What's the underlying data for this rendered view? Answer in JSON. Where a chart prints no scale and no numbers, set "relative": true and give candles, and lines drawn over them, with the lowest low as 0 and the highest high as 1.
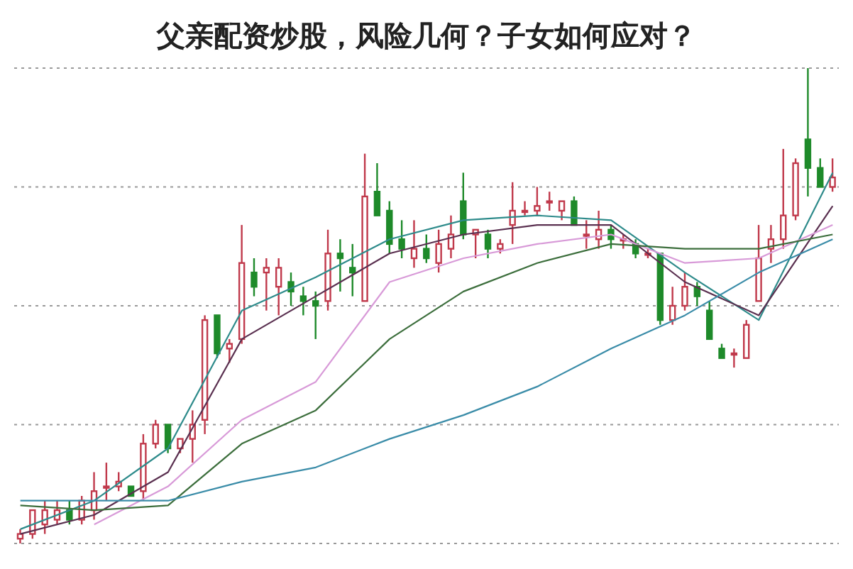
{
  "chart_data": {
    "type": "candlestick",
    "title": "父亲配资炒股，风险几何？子女如何应对？",
    "relative": true,
    "grid": "y",
    "colors": [
      "#c0394b",
      "#c0394b",
      "#c0394b",
      "#c0394b",
      "#1e8a2a",
      "#c0394b",
      "#c0394b",
      "#c0394b",
      "#c0394b",
      "#1e8a2a",
      "#c0394b",
      "#c0394b",
      "#1e8a2a",
      "#c0394b",
      "#c0394b",
      "#c0394b",
      "#1e8a2a",
      "#c0394b",
      "#c0394b",
      "#1e8a2a",
      "#c0394b",
      "#c0394b",
      "#1e8a2a",
      "#1e8a2a",
      "#1e8a2a",
      "#c0394b",
      "#1e8a2a",
      "#1e8a2a",
      "#c0394b",
      "#1e8a2a",
      "#1e8a2a",
      "#1e8a2a",
      "#c0394b",
      "#1e8a2a",
      "#c0394b",
      "#c0394b",
      "#1e8a2a",
      "#c0394b",
      "#1e8a2a",
      "#c0394b",
      "#c0394b",
      "#c0394b",
      "#c0394b",
      "#c0394b",
      "#c0394b",
      "#1e8a2a",
      "#c0394b",
      "#c0394b",
      "#1e8a2a",
      "#c0394b",
      "#1e8a2a",
      "#c0394b",
      "#1e8a2a",
      "#c0394b",
      "#c0394b",
      "#1e8a2a",
      "#1e8a2a",
      "#1e8a2a",
      "#c0394b",
      "#c0394b",
      "#c0394b",
      "#c0394b",
      "#c0394b",
      "#c0394b",
      "#1e8a2a",
      "#1e8a2a",
      "#c0394b"
    ],
    "categories": [
      null,
      null,
      null,
      null,
      null,
      null,
      null,
      null,
      null,
      null,
      null,
      null,
      null,
      null,
      null,
      null,
      null,
      null,
      null,
      null,
      null,
      null,
      null,
      null,
      null,
      null,
      null,
      null,
      null,
      null,
      null,
      null,
      null,
      null,
      null,
      null,
      null,
      null,
      null,
      null,
      null,
      null,
      null,
      null,
      null,
      null,
      null,
      null,
      null,
      null,
      null,
      null,
      null,
      null,
      null,
      null,
      null,
      null,
      null,
      null,
      null,
      null,
      null,
      null,
      null,
      null,
      null
    ],
    "ohlc": [
      [
        0.01,
        0.03,
        0,
        0.02
      ],
      [
        0.02,
        0.07,
        0.01,
        0.07
      ],
      [
        0.04,
        0.09,
        0.02,
        0.07
      ],
      [
        0.05,
        0.09,
        0.04,
        0.07
      ],
      [
        0.07,
        0.09,
        0.04,
        0.05
      ],
      [
        0.05,
        0.1,
        0.04,
        0.09
      ],
      [
        0.07,
        0.15,
        0.05,
        0.11
      ],
      [
        0.12,
        0.17,
        0.09,
        0.12
      ],
      [
        0.12,
        0.15,
        0.11,
        0.13
      ],
      [
        0.12,
        0.12,
        0.1,
        0.1
      ],
      [
        0.11,
        0.23,
        0.09,
        0.21
      ],
      [
        0.21,
        0.26,
        0.2,
        0.25
      ],
      [
        0.25,
        0.25,
        0.19,
        0.2
      ],
      [
        0.2,
        0.22,
        0.19,
        0.22
      ],
      [
        0.22,
        0.28,
        0.17,
        0.25
      ],
      [
        0.26,
        0.48,
        0.23,
        0.47
      ],
      [
        0.48,
        0.48,
        0.39,
        0.4
      ],
      [
        0.41,
        0.43,
        0.38,
        0.42
      ],
      [
        0.43,
        0.67,
        0.42,
        0.59
      ],
      [
        0.57,
        0.6,
        0.52,
        0.54
      ],
      [
        0.57,
        0.6,
        0.49,
        0.58
      ],
      [
        0.54,
        0.6,
        0.48,
        0.58
      ],
      [
        0.55,
        0.57,
        0.5,
        0.53
      ],
      [
        0.52,
        0.54,
        0.48,
        0.51
      ],
      [
        0.51,
        0.53,
        0.43,
        0.5
      ],
      [
        0.51,
        0.66,
        0.49,
        0.61
      ],
      [
        0.61,
        0.64,
        0.53,
        0.6
      ],
      [
        0.58,
        0.63,
        0.52,
        0.57
      ],
      [
        0.51,
        0.82,
        0.51,
        0.73
      ],
      [
        0.74,
        0.8,
        0.69,
        0.69
      ],
      [
        0.7,
        0.72,
        0.61,
        0.63
      ],
      [
        0.64,
        0.68,
        0.6,
        0.62
      ],
      [
        0.6,
        0.68,
        0.58,
        0.62
      ],
      [
        0.62,
        0.65,
        0.59,
        0.6
      ],
      [
        0.59,
        0.66,
        0.57,
        0.63
      ],
      [
        0.62,
        0.69,
        0.6,
        0.65
      ],
      [
        0.72,
        0.78,
        0.64,
        0.65
      ],
      [
        0.65,
        0.66,
        0.6,
        0.66
      ],
      [
        0.65,
        0.66,
        0.6,
        0.62
      ],
      [
        0.62,
        0.64,
        0.61,
        0.63
      ],
      [
        0.67,
        0.76,
        0.63,
        0.7
      ],
      [
        0.7,
        0.72,
        0.69,
        0.7
      ],
      [
        0.7,
        0.75,
        0.69,
        0.71
      ],
      [
        0.72,
        0.74,
        0.7,
        0.72
      ],
      [
        0.7,
        0.72,
        0.68,
        0.72
      ],
      [
        0.72,
        0.73,
        0.67,
        0.67
      ],
      [
        0.65,
        0.68,
        0.62,
        0.65
      ],
      [
        0.64,
        0.7,
        0.62,
        0.66
      ],
      [
        0.66,
        0.67,
        0.62,
        0.64
      ],
      [
        0.64,
        0.65,
        0.62,
        0.64
      ],
      [
        0.63,
        0.64,
        0.6,
        0.61
      ],
      [
        0.61,
        0.62,
        0.6,
        0.61
      ],
      [
        0.61,
        0.61,
        0.46,
        0.47
      ],
      [
        0.47,
        0.54,
        0.46,
        0.5
      ],
      [
        0.5,
        0.57,
        0.49,
        0.54
      ],
      [
        0.54,
        0.55,
        0.5,
        0.52
      ],
      [
        0.49,
        0.51,
        0.43,
        0.43
      ],
      [
        0.41,
        0.42,
        0.39,
        0.39
      ],
      [
        0.4,
        0.41,
        0.37,
        0.4
      ],
      [
        0.39,
        0.47,
        0.39,
        0.46
      ],
      [
        0.51,
        0.67,
        0.51,
        0.6
      ],
      [
        0.62,
        0.67,
        0.59,
        0.64
      ],
      [
        0.64,
        0.83,
        0.62,
        0.69
      ],
      [
        0.69,
        0.81,
        0.68,
        0.8
      ],
      [
        0.85,
        1,
        0.73,
        0.79
      ],
      [
        0.79,
        0.81,
        0.75,
        0.75
      ],
      [
        0.75,
        0.81,
        0.74,
        0.77
      ]
    ],
    "series": [
      {
        "type": "line",
        "color": "#2e8b8b",
        "values": [
          0.03,
          null,
          null,
          null,
          null,
          null,
          0.09,
          null,
          null,
          null,
          null,
          null,
          0.2,
          null,
          null,
          null,
          null,
          null,
          0.49,
          null,
          null,
          null,
          null,
          null,
          0.56,
          null,
          null,
          null,
          null,
          null,
          0.64,
          null,
          null,
          null,
          null,
          null,
          0.68,
          null,
          null,
          null,
          null,
          null,
          0.69,
          null,
          null,
          null,
          null,
          null,
          0.68,
          null,
          null,
          null,
          null,
          null,
          0.57,
          null,
          null,
          null,
          null,
          null,
          0.47,
          null,
          null,
          null,
          null,
          null,
          0.78
        ]
      },
      {
        "type": "line",
        "color": "#5a3050",
        "values": [
          0.02,
          null,
          null,
          null,
          null,
          null,
          0.06,
          null,
          null,
          null,
          null,
          null,
          0.15,
          null,
          null,
          null,
          null,
          null,
          0.43,
          null,
          null,
          null,
          null,
          null,
          0.52,
          null,
          null,
          null,
          null,
          null,
          0.61,
          null,
          null,
          null,
          null,
          null,
          0.65,
          null,
          null,
          null,
          null,
          null,
          0.67,
          null,
          null,
          null,
          null,
          null,
          0.67,
          null,
          null,
          null,
          null,
          null,
          0.55,
          null,
          null,
          null,
          null,
          null,
          0.48,
          null,
          null,
          null,
          null,
          null,
          0.71
        ]
      },
      {
        "type": "line",
        "color": "#d89ad8",
        "values": [
          null,
          null,
          null,
          null,
          null,
          null,
          0.04,
          null,
          null,
          null,
          null,
          null,
          0.12,
          null,
          null,
          null,
          null,
          null,
          0.26,
          null,
          null,
          null,
          null,
          null,
          0.34,
          null,
          null,
          null,
          null,
          null,
          0.55,
          null,
          null,
          null,
          null,
          null,
          0.6,
          null,
          null,
          null,
          null,
          null,
          0.63,
          null,
          null,
          null,
          null,
          null,
          0.65,
          null,
          null,
          null,
          null,
          null,
          0.59,
          null,
          null,
          null,
          null,
          null,
          0.6,
          null,
          null,
          null,
          null,
          null,
          0.67
        ]
      },
      {
        "type": "line",
        "color": "#3c6e3c",
        "values": [
          0.08,
          null,
          null,
          null,
          null,
          null,
          0.07,
          null,
          null,
          null,
          null,
          null,
          0.08,
          null,
          null,
          null,
          null,
          null,
          0.21,
          null,
          null,
          null,
          null,
          null,
          0.28,
          null,
          null,
          null,
          null,
          null,
          0.43,
          null,
          null,
          null,
          null,
          null,
          0.53,
          null,
          null,
          null,
          null,
          null,
          0.59,
          null,
          null,
          null,
          null,
          null,
          0.63,
          null,
          null,
          null,
          null,
          null,
          0.62,
          null,
          null,
          null,
          null,
          null,
          0.62,
          null,
          null,
          null,
          null,
          null,
          0.65
        ]
      },
      {
        "type": "line",
        "color": "#3a8ca8",
        "values": [
          0.09,
          null,
          null,
          null,
          null,
          null,
          0.09,
          null,
          null,
          null,
          null,
          null,
          0.09,
          null,
          null,
          null,
          null,
          null,
          0.13,
          null,
          null,
          null,
          null,
          null,
          0.16,
          null,
          null,
          null,
          null,
          null,
          0.22,
          null,
          null,
          null,
          null,
          null,
          0.27,
          null,
          null,
          null,
          null,
          null,
          0.33,
          null,
          null,
          null,
          null,
          null,
          0.41,
          null,
          null,
          null,
          null,
          null,
          0.48,
          null,
          null,
          null,
          null,
          null,
          0.57,
          null,
          null,
          null,
          null,
          null,
          0.64
        ]
      }
    ]
  }
}
